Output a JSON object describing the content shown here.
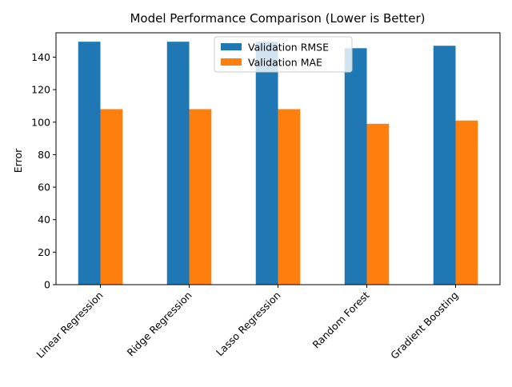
{
  "chart_data": {
    "type": "bar",
    "title": "Model Performance Comparison (Lower is Better)",
    "xlabel": "",
    "ylabel": "Error",
    "categories": [
      "Linear Regression",
      "Ridge Regression",
      "Lasso Regression",
      "Random Forest",
      "Gradient Boosting"
    ],
    "series": [
      {
        "name": "Validation RMSE",
        "values": [
          149.5,
          149.5,
          149.5,
          145.5,
          147.0
        ],
        "color": "#1f77b4"
      },
      {
        "name": "Validation MAE",
        "values": [
          108.0,
          108.0,
          108.0,
          99.0,
          101.0
        ],
        "color": "#ff7f0e"
      }
    ],
    "ylim": [
      0,
      155
    ],
    "yticks": [
      0,
      20,
      40,
      60,
      80,
      100,
      120,
      140
    ],
    "grid": false,
    "legend_position": "top-center",
    "xtick_rotation": 45
  }
}
